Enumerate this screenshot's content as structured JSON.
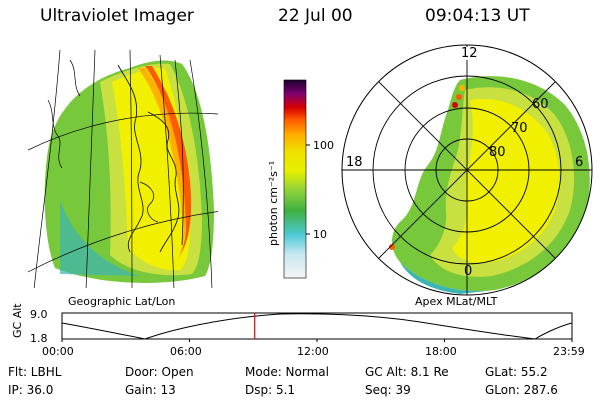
{
  "header": {
    "title": "Ultraviolet Imager",
    "date": "22 Jul 00",
    "time": "09:04:13 UT"
  },
  "map_left": {
    "caption": "Geographic Lat/Lon"
  },
  "map_right": {
    "caption": "Apex MLat/MLT",
    "mlt_labels": [
      "12",
      "18",
      "6",
      "0"
    ],
    "mlat_labels": [
      "60",
      "70",
      "80"
    ]
  },
  "colorbar": {
    "label": "photon cm⁻²s⁻¹",
    "ticks": [
      "100",
      "10"
    ]
  },
  "altitude_plot": {
    "ylabel": "GC Alt",
    "ymax_label": "9.0",
    "ymin_label": "1.8",
    "xticks": [
      "00:00",
      "06:00",
      "12:00",
      "18:00",
      "23:59"
    ],
    "current_time_frac": 0.3779
  },
  "footer": {
    "row1": {
      "flt": "Flt: LBHL",
      "door": "Door: Open",
      "mode": "Mode: Normal",
      "gcalt": "GC Alt: 8.1 Re",
      "glat": "GLat:  55.2"
    },
    "row2": {
      "ip": "IP: 36.0",
      "gain": "Gain: 13",
      "dsp": "Dsp:    5.1",
      "seq": "Seq: 39",
      "glon": "GLon: 287.6"
    }
  },
  "colors": {
    "auroral_peak": "#ff5a00",
    "auroral_high": "#ffb000",
    "auroral_mid": "#f0f000",
    "auroral_low": "#78c83c",
    "auroral_floor": "#3cb4b4",
    "time_marker": "#e00000"
  }
}
